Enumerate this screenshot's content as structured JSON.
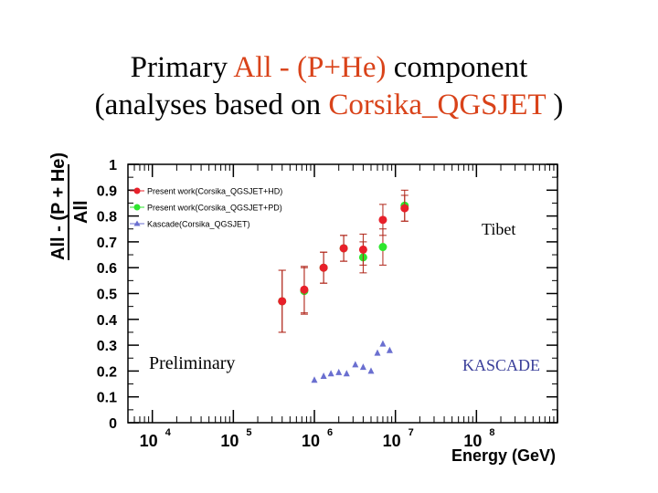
{
  "title": {
    "line1_prefix": "Primary ",
    "line1_highlight": "All - (P+He)",
    "line1_suffix": " component",
    "line2_prefix": "(analyses based on ",
    "line2_highlight": "Corsika_QGSJET",
    "line2_suffix": " )"
  },
  "annotations": {
    "preliminary": "Preliminary",
    "tibet": "Tibet",
    "kascade": "KASCADE"
  },
  "colors": {
    "highlight": "#d9431a",
    "series_red": "#e8202a",
    "series_green": "#2ee62e",
    "series_blue": "#6a6fd0",
    "errorbar": "#b02418"
  },
  "chart_data": {
    "type": "scatter",
    "xlabel": "Energy (GeV)",
    "ylabel_numerator": "All - (P + He)",
    "ylabel_denominator": "All",
    "x_scale": "log",
    "xlim": [
      5000,
      1000000000
    ],
    "ylim": [
      0,
      1
    ],
    "x_ticks": [
      {
        "base": "10",
        "exp": "4",
        "value": 10000
      },
      {
        "base": "10",
        "exp": "5",
        "value": 100000
      },
      {
        "base": "10",
        "exp": "6",
        "value": 1000000
      },
      {
        "base": "10",
        "exp": "7",
        "value": 10000000
      },
      {
        "base": "10",
        "exp": "8",
        "value": 100000000
      }
    ],
    "y_ticks": [
      {
        "label": "0",
        "value": 0
      },
      {
        "label": "0.1",
        "value": 0.1
      },
      {
        "label": "0.2",
        "value": 0.2
      },
      {
        "label": "0.3",
        "value": 0.3
      },
      {
        "label": "0.4",
        "value": 0.4
      },
      {
        "label": "0.5",
        "value": 0.5
      },
      {
        "label": "0.6",
        "value": 0.6
      },
      {
        "label": "0.7",
        "value": 0.7
      },
      {
        "label": "0.8",
        "value": 0.8
      },
      {
        "label": "0.9",
        "value": 0.9
      },
      {
        "label": "1",
        "value": 1
      }
    ],
    "legend_position": "top-left",
    "series": [
      {
        "name": "Present work(Corsika_QGSJET+HD)",
        "marker": "circle",
        "color": "#e8202a",
        "points": [
          {
            "x": 400000,
            "y": 0.47,
            "err_lo": 0.12,
            "err_hi": 0.12
          },
          {
            "x": 750000,
            "y": 0.515,
            "err_lo": 0.09,
            "err_hi": 0.09
          },
          {
            "x": 1300000,
            "y": 0.6,
            "err_lo": 0.06,
            "err_hi": 0.06
          },
          {
            "x": 2300000,
            "y": 0.675,
            "err_lo": 0.05,
            "err_hi": 0.05
          },
          {
            "x": 4000000,
            "y": 0.67,
            "err_lo": 0.06,
            "err_hi": 0.06
          },
          {
            "x": 7000000,
            "y": 0.785,
            "err_lo": 0.06,
            "err_hi": 0.06
          },
          {
            "x": 13000000,
            "y": 0.83,
            "err_lo": 0.05,
            "err_hi": 0.05
          }
        ]
      },
      {
        "name": "Present work(Corsika_QGSJET+PD)",
        "marker": "circle",
        "color": "#2ee62e",
        "points": [
          {
            "x": 400000,
            "y": 0.47,
            "err_lo": 0.12,
            "err_hi": 0.12
          },
          {
            "x": 750000,
            "y": 0.51,
            "err_lo": 0.09,
            "err_hi": 0.09
          },
          {
            "x": 1300000,
            "y": 0.6,
            "err_lo": 0.06,
            "err_hi": 0.06
          },
          {
            "x": 2300000,
            "y": 0.675,
            "err_lo": 0.05,
            "err_hi": 0.05
          },
          {
            "x": 4000000,
            "y": 0.64,
            "err_lo": 0.06,
            "err_hi": 0.06
          },
          {
            "x": 7000000,
            "y": 0.68,
            "err_lo": 0.07,
            "err_hi": 0.07
          },
          {
            "x": 13000000,
            "y": 0.84,
            "err_lo": 0.06,
            "err_hi": 0.06
          }
        ]
      },
      {
        "name": "Kascade(Corsika_QGSJET)",
        "marker": "triangle",
        "color": "#6a6fd0",
        "points": [
          {
            "x": 1000000,
            "y": 0.165
          },
          {
            "x": 1300000,
            "y": 0.18
          },
          {
            "x": 1600000,
            "y": 0.19
          },
          {
            "x": 2000000,
            "y": 0.195
          },
          {
            "x": 2500000,
            "y": 0.19
          },
          {
            "x": 3200000,
            "y": 0.225
          },
          {
            "x": 4000000,
            "y": 0.215
          },
          {
            "x": 5000000,
            "y": 0.2
          },
          {
            "x": 6000000,
            "y": 0.27
          },
          {
            "x": 7000000,
            "y": 0.305
          },
          {
            "x": 8500000,
            "y": 0.28
          }
        ]
      }
    ]
  }
}
